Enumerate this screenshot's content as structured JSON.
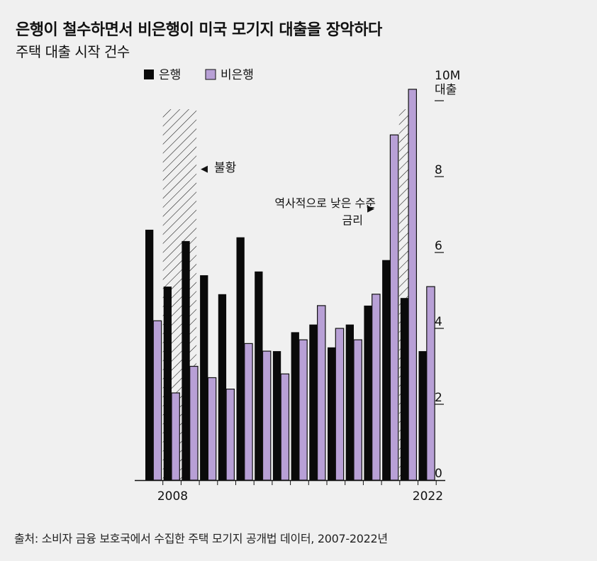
{
  "header": {
    "title": "은행이 철수하면서 비은행이 미국 모기지 대출을 장악하다",
    "subtitle": "주택 대출 시작 건수"
  },
  "legend": {
    "bank": "은행",
    "nonbank": "비은행"
  },
  "annotations": {
    "recession": "불황",
    "low_rates_line1": "역사적으로 낮은 수준",
    "low_rates_line2": "금리",
    "arrow_left": "◀",
    "arrow_right": "▶"
  },
  "source": "출처: 소비자 금융 보호국에서 수집한 주택 모기지 공개법 데이터, 2007-2022년",
  "colors": {
    "bank": "#0a0a0a",
    "nonbank": "#b8a0d6",
    "background": "#f0f0f0"
  },
  "chart_data": {
    "type": "bar",
    "title": "주택 대출 시작 건수",
    "ylabel": "대출",
    "ylim": [
      0,
      10
    ],
    "yticks": [
      0,
      2,
      4,
      6,
      8
    ],
    "ytick_labels": [
      "0",
      "2",
      "4",
      "6",
      "8"
    ],
    "ytop_label": "10M",
    "categories": [
      "2007",
      "2008",
      "2009",
      "2010",
      "2011",
      "2012",
      "2013",
      "2014",
      "2015",
      "2016",
      "2017",
      "2018",
      "2019",
      "2020",
      "2021",
      "2022"
    ],
    "xtick_labels": {
      "2008": "2008",
      "2022": "2022"
    },
    "shaded_periods": [
      {
        "name": "불황",
        "start": "2008",
        "end": "2009"
      },
      {
        "name": "역사적으로 낮은 수준 금리",
        "start": "2021",
        "end": "2021"
      }
    ],
    "series": [
      {
        "name": "은행",
        "values": [
          6.6,
          5.1,
          6.3,
          5.4,
          4.9,
          6.4,
          5.5,
          3.4,
          3.9,
          4.1,
          3.5,
          4.1,
          4.6,
          5.8,
          4.8,
          3.4
        ]
      },
      {
        "name": "비은행",
        "values": [
          4.2,
          2.3,
          3.0,
          2.7,
          2.4,
          3.6,
          3.4,
          2.8,
          3.7,
          4.6,
          4.0,
          3.7,
          4.9,
          9.1,
          10.3,
          5.1
        ]
      }
    ]
  }
}
